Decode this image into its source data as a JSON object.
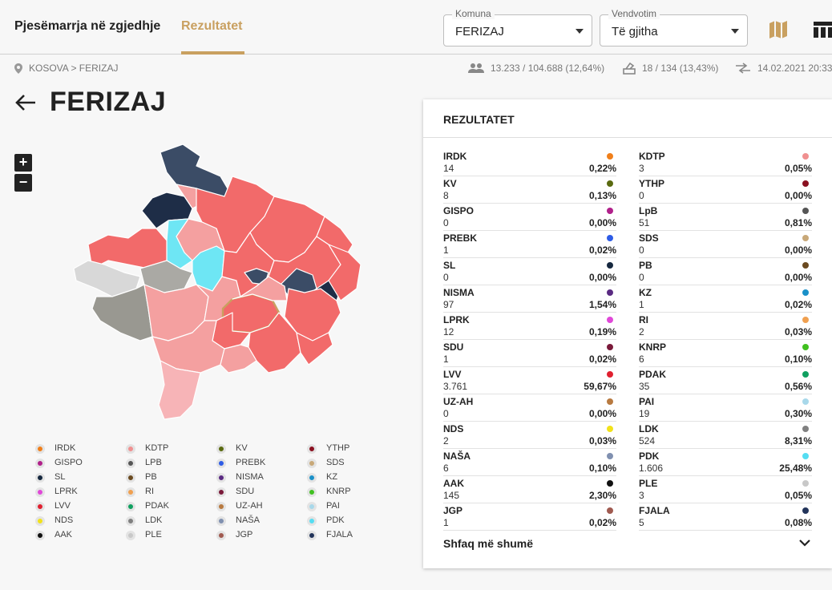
{
  "nav": {
    "tab_participation": "Pjesëmarrja në zgjedhje",
    "tab_results": "Rezultatet"
  },
  "filters": {
    "municipality": {
      "label": "Komuna",
      "value": "FERIZAJ"
    },
    "polling": {
      "label": "Vendvotim",
      "value": "Të gjitha"
    }
  },
  "breadcrumb": {
    "text": "KOSOVA > FERIZAJ"
  },
  "stats": {
    "voters": "13.233 / 104.688 (12,64%)",
    "stations": "18 / 134 (13,43%)",
    "updated": "14.02.2021 20:33"
  },
  "page": {
    "title": "FERIZAJ"
  },
  "zoom": {
    "in": "+",
    "out": "−"
  },
  "panel": {
    "title": "REZULTATET",
    "show_more": "Shfaq më shumë"
  },
  "results_left": [
    {
      "name": "IRDK",
      "votes": "14",
      "pct": "0,22%",
      "color": "#f07f1a"
    },
    {
      "name": "KV",
      "votes": "8",
      "pct": "0,13%",
      "color": "#5a6a10"
    },
    {
      "name": "GISPO",
      "votes": "0",
      "pct": "0,00%",
      "color": "#b0208a"
    },
    {
      "name": "PREBK",
      "votes": "1",
      "pct": "0,02%",
      "color": "#2e5ce6"
    },
    {
      "name": "SL",
      "votes": "0",
      "pct": "0,00%",
      "color": "#16283f"
    },
    {
      "name": "NISMA",
      "votes": "97",
      "pct": "1,54%",
      "color": "#5a2a82"
    },
    {
      "name": "LPRK",
      "votes": "12",
      "pct": "0,19%",
      "color": "#e048d8"
    },
    {
      "name": "SDU",
      "votes": "1",
      "pct": "0,02%",
      "color": "#7a1a3a"
    },
    {
      "name": "LVV",
      "votes": "3.761",
      "pct": "59,67%",
      "color": "#e02030"
    },
    {
      "name": "UZ-AH",
      "votes": "0",
      "pct": "0,00%",
      "color": "#b87a40"
    },
    {
      "name": "NDS",
      "votes": "2",
      "pct": "0,03%",
      "color": "#f2e21a"
    },
    {
      "name": "NAŠA",
      "votes": "6",
      "pct": "0,10%",
      "color": "#8090b0"
    },
    {
      "name": "AAK",
      "votes": "145",
      "pct": "2,30%",
      "color": "#111111"
    },
    {
      "name": "JGP",
      "votes": "1",
      "pct": "0,02%",
      "color": "#a05a50"
    }
  ],
  "results_right": [
    {
      "name": "KDTP",
      "votes": "3",
      "pct": "0,05%",
      "color": "#f09090"
    },
    {
      "name": "YTHP",
      "votes": "0",
      "pct": "0,00%",
      "color": "#8a1020"
    },
    {
      "name": "LpB",
      "votes": "51",
      "pct": "0,81%",
      "color": "#555555"
    },
    {
      "name": "SDS",
      "votes": "0",
      "pct": "0,00%",
      "color": "#c8a878"
    },
    {
      "name": "PB",
      "votes": "0",
      "pct": "0,00%",
      "color": "#6a4a20"
    },
    {
      "name": "KZ",
      "votes": "1",
      "pct": "0,02%",
      "color": "#1a90c8"
    },
    {
      "name": "RI",
      "votes": "2",
      "pct": "0,03%",
      "color": "#f0a050"
    },
    {
      "name": "KNRP",
      "votes": "6",
      "pct": "0,10%",
      "color": "#40c020"
    },
    {
      "name": "PDAK",
      "votes": "35",
      "pct": "0,56%",
      "color": "#10a060"
    },
    {
      "name": "PAI",
      "votes": "19",
      "pct": "0,30%",
      "color": "#a8d8ea"
    },
    {
      "name": "LDK",
      "votes": "524",
      "pct": "8,31%",
      "color": "#808080"
    },
    {
      "name": "PDK",
      "votes": "1.606",
      "pct": "25,48%",
      "color": "#55ddf2"
    },
    {
      "name": "PLE",
      "votes": "3",
      "pct": "0,05%",
      "color": "#c8c8c8"
    },
    {
      "name": "FJALA",
      "votes": "5",
      "pct": "0,08%",
      "color": "#22345a"
    }
  ],
  "legend": [
    [
      "IRDK",
      "KDTP",
      "KV",
      "YTHP"
    ],
    [
      "GISPO",
      "LPB",
      "PREBK",
      "SDS"
    ],
    [
      "SL",
      "PB",
      "NISMA",
      "KZ"
    ],
    [
      "LPRK",
      "RI",
      "SDU",
      "KNRP"
    ],
    [
      "LVV",
      "PDAK",
      "UZ-AH",
      "PAI"
    ],
    [
      "NDS",
      "LDK",
      "NAŠA",
      "PDK"
    ],
    [
      "AAK",
      "PLE",
      "JGP",
      "FJALA"
    ]
  ],
  "legend_colors": [
    [
      "#f07f1a",
      "#f09090",
      "#5a6a10",
      "#8a1020"
    ],
    [
      "#b0208a",
      "#555555",
      "#2e5ce6",
      "#c8a878"
    ],
    [
      "#16283f",
      "#6a4a20",
      "#5a2a82",
      "#1a90c8"
    ],
    [
      "#e048d8",
      "#f0a050",
      "#7a1a3a",
      "#40c020"
    ],
    [
      "#e02030",
      "#10a060",
      "#b87a40",
      "#a8d8ea"
    ],
    [
      "#f2e21a",
      "#808080",
      "#8090b0",
      "#55ddf2"
    ],
    [
      "#111111",
      "#c8c8c8",
      "#a05a50",
      "#22345a"
    ]
  ],
  "map_colors": {
    "lvv": "#f26a6a",
    "lvv_light": "#f4a0a0",
    "pdk": "#6ee6f4",
    "ldk": "#999891",
    "ldk_light": "#aaa9a4",
    "srb": "#3b4c66",
    "srb_dark": "#1e2d47",
    "ple": "#d8d8d8",
    "pink": "#f7b4b7",
    "selected": "#c9a060"
  }
}
